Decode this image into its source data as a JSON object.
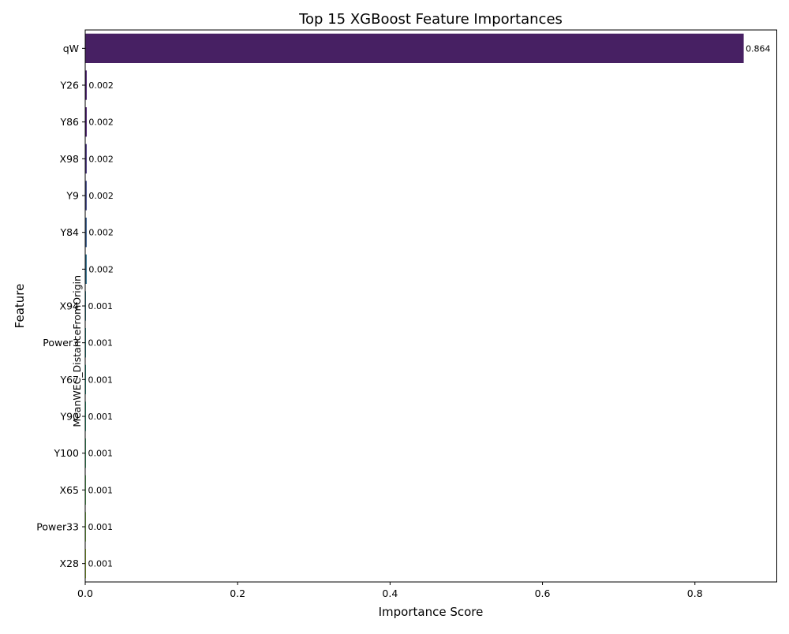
{
  "chart_data": {
    "type": "bar",
    "orientation": "horizontal",
    "title": "Top 15 XGBoost Feature Importances",
    "xlabel": "Importance Score",
    "ylabel": "Feature",
    "xlim": [
      0,
      0.9074
    ],
    "xticks": [
      "0.0",
      "0.2",
      "0.4",
      "0.6",
      "0.8"
    ],
    "grid": false,
    "categories": [
      "qW",
      "Y26",
      "Y86",
      "X98",
      "Y9",
      "Y84",
      "MeanWEC_DistanceFromOrigin",
      "X94",
      "Power3",
      "Y67",
      "Y90",
      "Y100",
      "X65",
      "Power33",
      "X28"
    ],
    "values": [
      0.864,
      0.002,
      0.002,
      0.002,
      0.002,
      0.002,
      0.002,
      0.001,
      0.001,
      0.001,
      0.001,
      0.001,
      0.001,
      0.001,
      0.001
    ],
    "value_labels": [
      "0.864",
      "0.002",
      "0.002",
      "0.002",
      "0.002",
      "0.002",
      "0.002",
      "0.001",
      "0.001",
      "0.001",
      "0.001",
      "0.001",
      "0.001",
      "0.001",
      "0.001"
    ],
    "colors": [
      "#472063",
      "#481c6e",
      "#481b6d",
      "#46327e",
      "#3f4788",
      "#365c8d",
      "#2e6e8e",
      "#27808e",
      "#21918c",
      "#1fa088",
      "#28ae80",
      "#3fbc73",
      "#5ec962",
      "#84d44b",
      "#addc30"
    ],
    "palette": "viridis"
  }
}
